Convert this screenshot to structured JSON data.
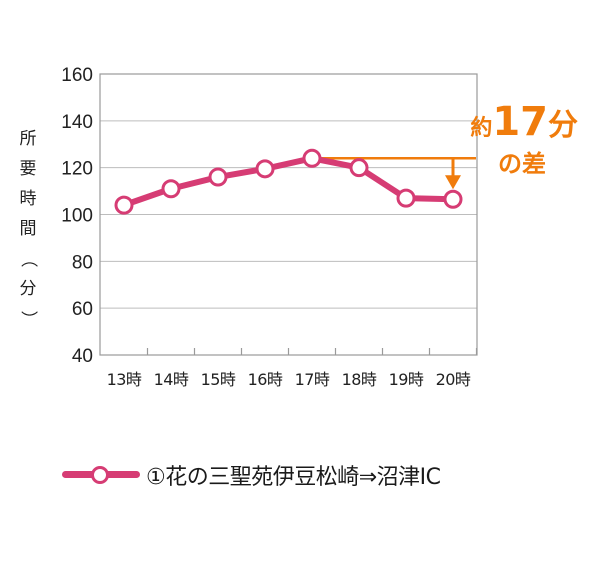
{
  "chart_data": {
    "type": "line",
    "categories": [
      "13時",
      "14時",
      "15時",
      "16時",
      "17時",
      "18時",
      "19時",
      "20時"
    ],
    "series": [
      {
        "name": "①花の三聖苑伊豆松崎⇒沼津IC",
        "values": [
          104,
          111,
          116,
          119.5,
          124,
          120,
          107,
          106.5
        ],
        "color": "#d63c74"
      }
    ],
    "ylabel": "所要時間（分）",
    "yticks": [
      40,
      60,
      80,
      100,
      120,
      140,
      160
    ],
    "ylim": [
      40,
      160
    ],
    "grid": true,
    "annotation": {
      "prefix": "約",
      "number": "17",
      "unit": "分",
      "suffix": "の差",
      "color": "#f07c0c",
      "from_value": 124,
      "to_value": 106.5
    },
    "legend_position": "bottom"
  }
}
